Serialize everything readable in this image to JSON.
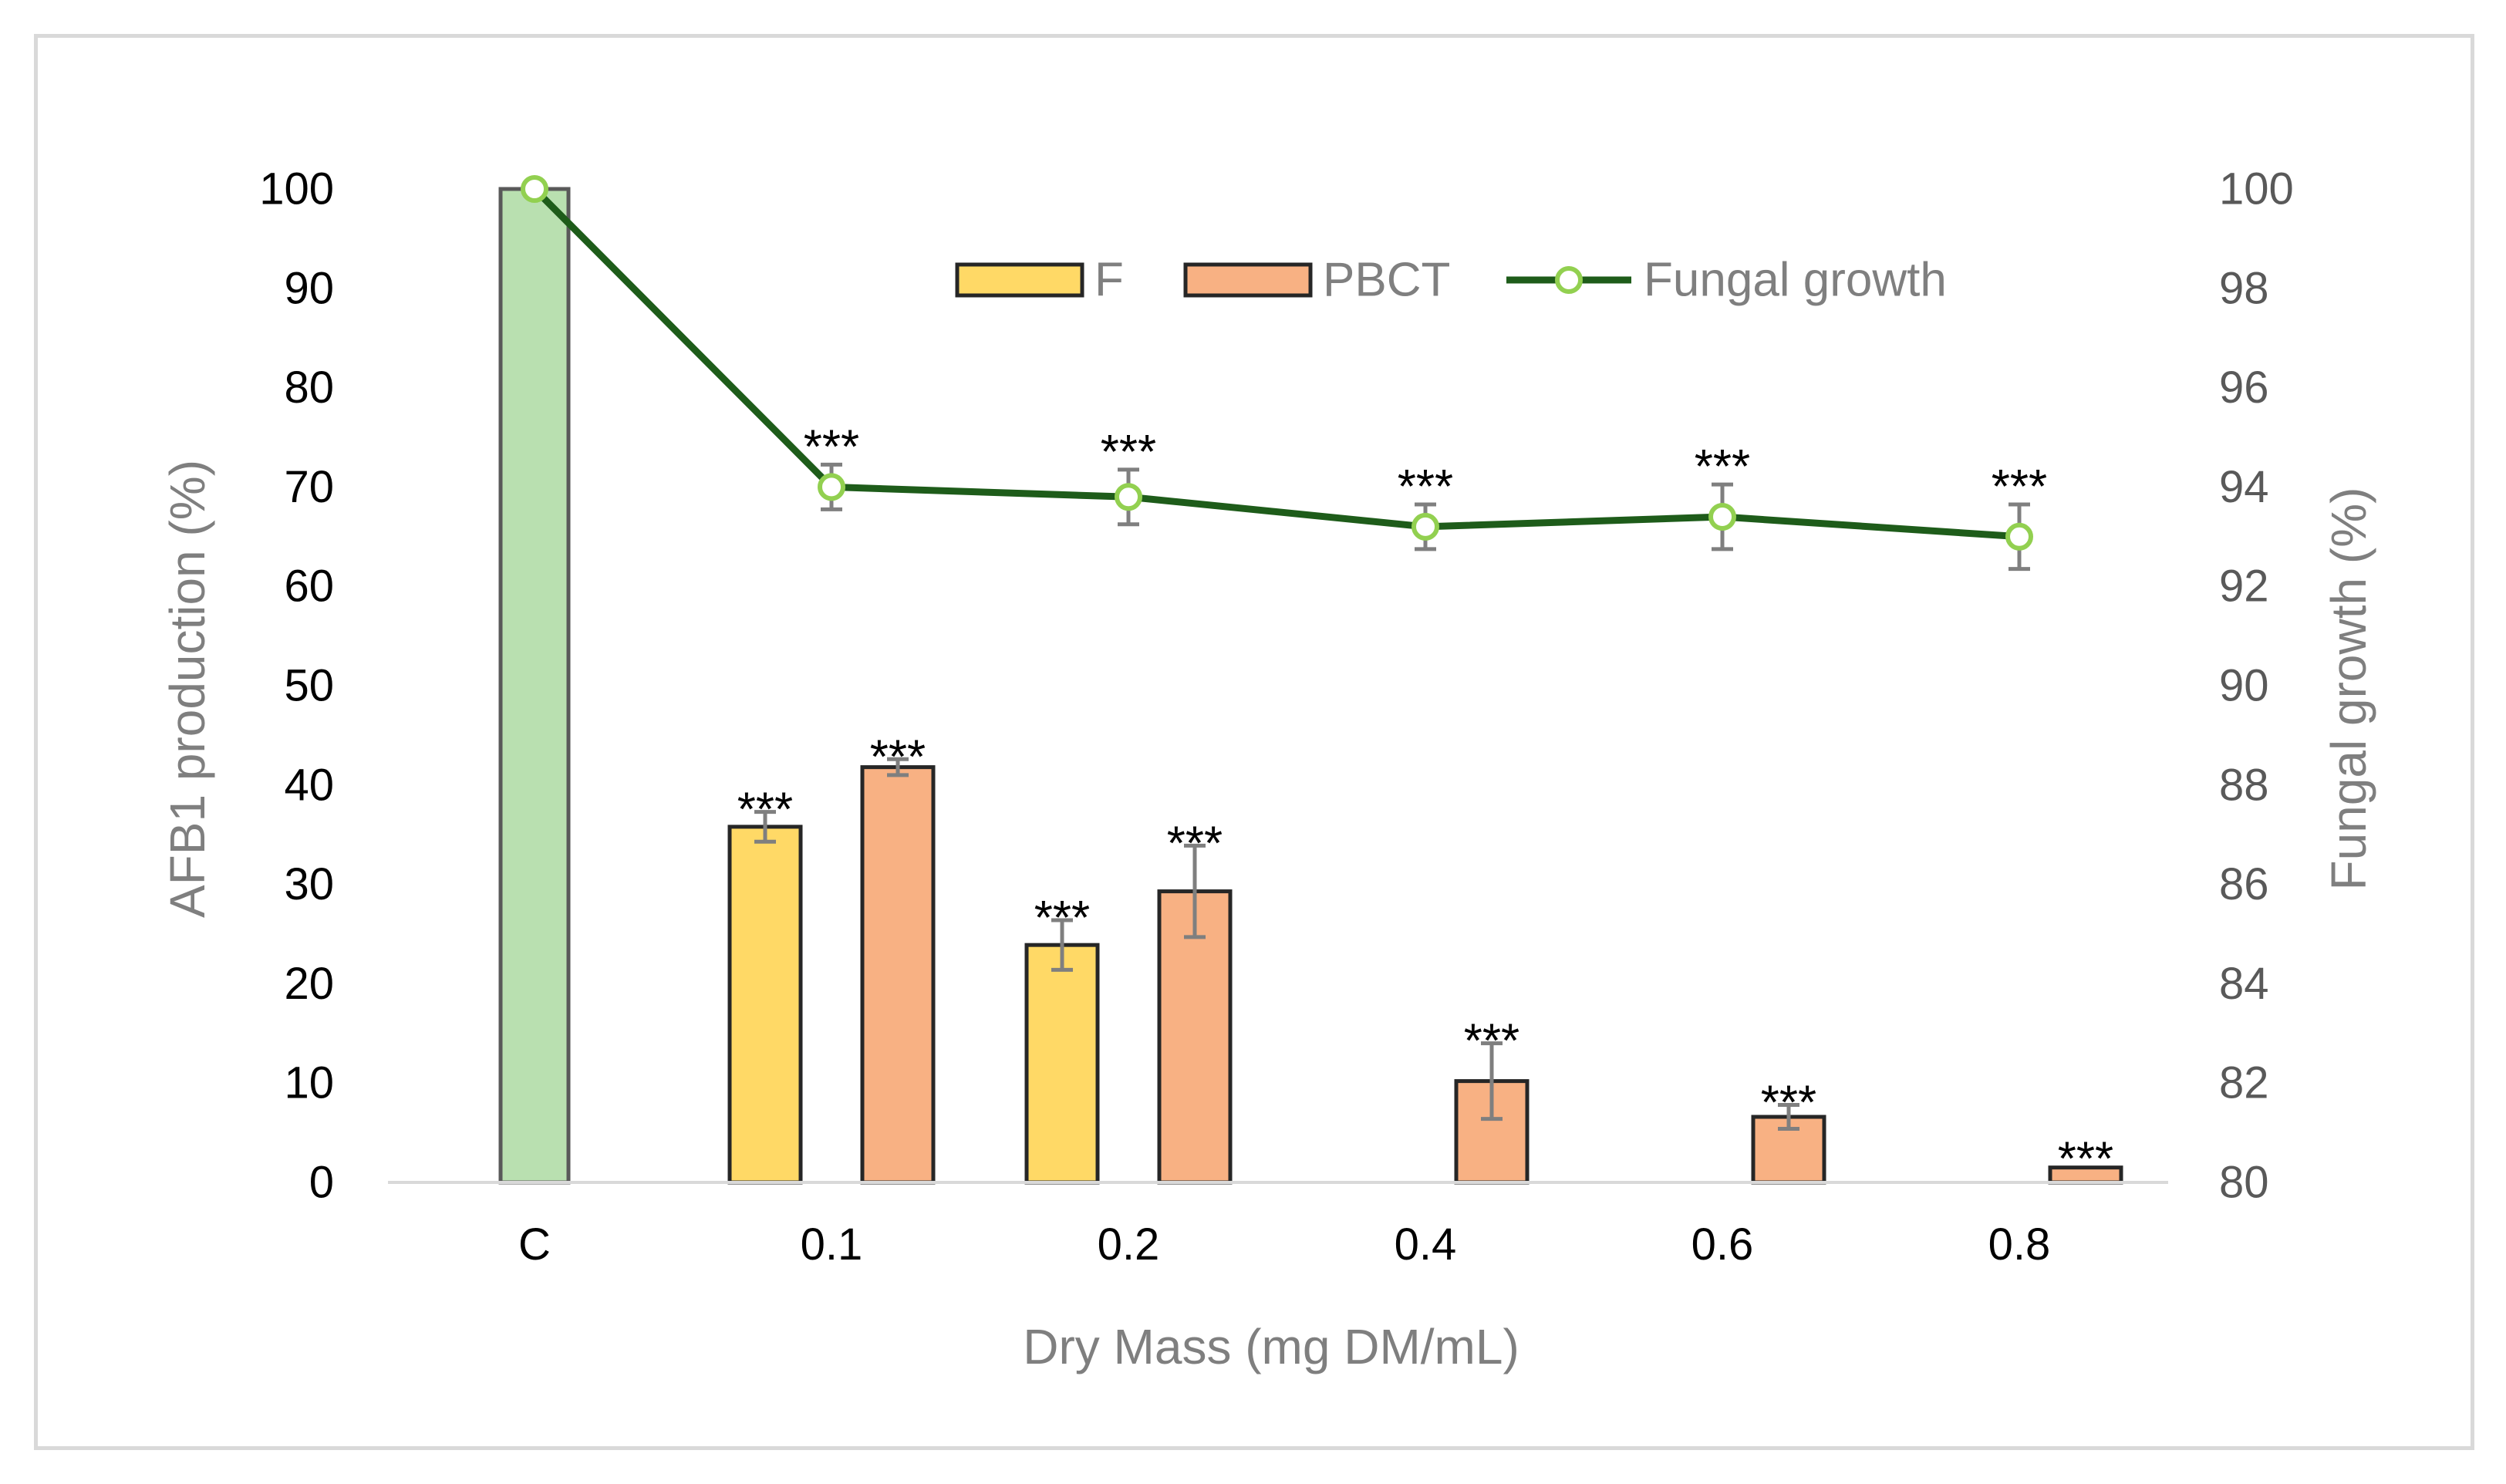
{
  "chart_data": {
    "type": "bar",
    "title": "",
    "xlabel": "Dry Mass (mg DM/mL)",
    "ylabel": "AFB1 production (%)",
    "y2label": "Fungal growth (%)",
    "categories": [
      "C",
      "0.1",
      "0.2",
      "0.4",
      "0.6",
      "0.8"
    ],
    "ylim": [
      0,
      100
    ],
    "yticks": [
      0,
      10,
      20,
      30,
      40,
      50,
      60,
      70,
      80,
      90,
      100
    ],
    "y2lim": [
      80,
      100
    ],
    "y2ticks": [
      80,
      82,
      84,
      86,
      88,
      90,
      92,
      94,
      96,
      98,
      100
    ],
    "legend": [
      "F",
      "PBCT",
      "Fungal growth"
    ],
    "legend_position": "top-center",
    "control": {
      "name": "C",
      "value": 100,
      "color": "#b9e0b0"
    },
    "series": [
      {
        "name": "F",
        "type": "bar",
        "color": "#ffd966",
        "values": [
          null,
          35.8,
          23.9,
          null,
          null,
          null
        ],
        "errors": [
          null,
          1.5,
          2.5,
          null,
          null,
          null
        ],
        "significance": [
          "",
          "***",
          "***",
          "",
          "",
          ""
        ]
      },
      {
        "name": "PBCT",
        "type": "bar",
        "color": "#f8b183",
        "values": [
          null,
          41.8,
          29.3,
          10.2,
          6.6,
          1.5
        ],
        "errors": [
          null,
          0.8,
          4.6,
          3.8,
          1.2,
          0
        ],
        "significance": [
          "",
          "***",
          "***",
          "***",
          "***",
          "***"
        ]
      },
      {
        "name": "Fungal growth",
        "type": "line",
        "axis": "right",
        "color": "#1e5c1a",
        "marker_color": "#92d050",
        "values": [
          100,
          94.0,
          93.8,
          93.2,
          93.4,
          93.0
        ],
        "errors": [
          0,
          0.45,
          0.55,
          0.45,
          0.65,
          0.65
        ],
        "significance": [
          "",
          "***",
          "***",
          "***",
          "***",
          "***"
        ]
      }
    ]
  }
}
